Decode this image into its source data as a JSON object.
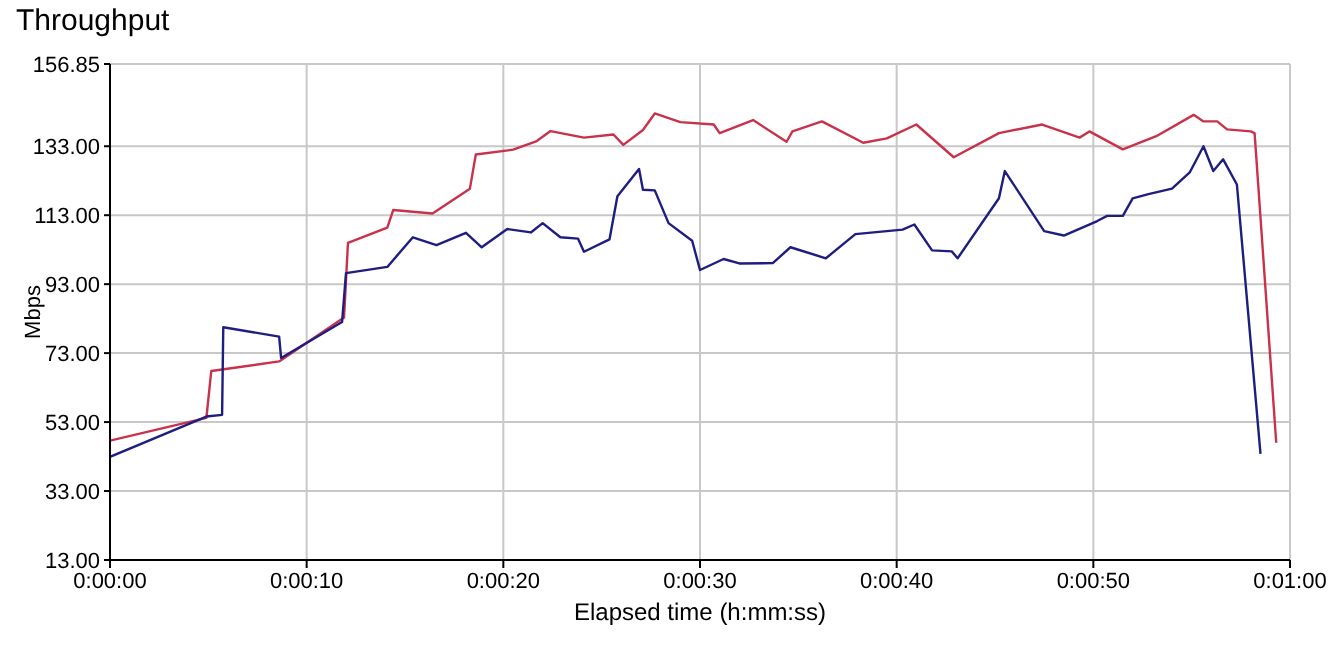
{
  "chart_data": {
    "type": "line",
    "title": "Throughput",
    "xlabel": "Elapsed time (h:mm:ss)",
    "ylabel": "Mbps",
    "xlim": [
      0,
      60
    ],
    "xticks": [
      {
        "value": 0,
        "label": "0:00:00"
      },
      {
        "value": 10,
        "label": "0:00:10"
      },
      {
        "value": 20,
        "label": "0:00:20"
      },
      {
        "value": 30,
        "label": "0:00:30"
      },
      {
        "value": 40,
        "label": "0:00:40"
      },
      {
        "value": 50,
        "label": "0:00:50"
      },
      {
        "value": 60,
        "label": "0:01:00"
      }
    ],
    "ylim": [
      13,
      156.85
    ],
    "yticks": [
      {
        "value": 13,
        "label": "13.00"
      },
      {
        "value": 33,
        "label": "33.00"
      },
      {
        "value": 53,
        "label": "53.00"
      },
      {
        "value": 73,
        "label": "73.00"
      },
      {
        "value": 93,
        "label": "93.00"
      },
      {
        "value": 113,
        "label": "113.00"
      },
      {
        "value": 133,
        "label": "133.00"
      },
      156.85
    ],
    "grid": true,
    "marker": "none",
    "line_style": "solid",
    "series": [
      {
        "color": "#c8324a",
        "x": [
          0,
          4.9,
          5.15,
          8.6,
          11.9,
          12.1,
          14.1,
          14.4,
          16.4,
          18.3,
          18.6,
          20.5,
          21.7,
          22.4,
          24.1,
          25.6,
          26.1,
          27.1,
          27.7,
          29,
          30.7,
          31,
          32.7,
          34.4,
          34.7,
          36.2,
          38.3,
          39.5,
          41,
          42.9,
          45.2,
          47.4,
          49.3,
          49.8,
          51.5,
          53.2,
          55.1,
          55.6,
          56.3,
          56.8,
          58,
          58.2,
          59.3
        ],
        "values": [
          47.6,
          54.2,
          67.8,
          70.6,
          83.3,
          105,
          109.4,
          114.5,
          113.5,
          120.7,
          130.6,
          132,
          134.5,
          137.4,
          135.5,
          136.4,
          133.4,
          137.7,
          142.5,
          140,
          139.3,
          136.8,
          140.6,
          134.3,
          137.3,
          140.2,
          134,
          135.3,
          139.3,
          129.8,
          136.8,
          139.3,
          135.5,
          137.3,
          132.1,
          135.9,
          142.1,
          140.2,
          140.2,
          137.9,
          137.3,
          136.8,
          47
        ]
      },
      {
        "color": "#1e1e80",
        "x": [
          0,
          4.9,
          5.7,
          5.76,
          8.6,
          8.7,
          11.8,
          12,
          14.1,
          15.4,
          16.6,
          18.1,
          18.9,
          20.2,
          21.4,
          22,
          22.9,
          23.8,
          24.1,
          25.4,
          25.8,
          26.9,
          27.1,
          27.7,
          28.4,
          29.6,
          30,
          31.2,
          32,
          33.7,
          34.6,
          36.4,
          37.9,
          40.3,
          40.9,
          41.8,
          42.8,
          43.1,
          45.2,
          45.5,
          47.5,
          48.5,
          50.2,
          50.7,
          51.5,
          52,
          52.8,
          54,
          54.9,
          55.6,
          56.1,
          56.6,
          57.3,
          58.5
        ],
        "values": [
          42.9,
          54.6,
          55.1,
          80.5,
          77.8,
          71.6,
          82,
          96.2,
          98,
          106.6,
          104.3,
          107.9,
          103.7,
          109,
          108,
          110.7,
          106.6,
          106.2,
          102.4,
          106,
          118.5,
          126.4,
          120.4,
          120.2,
          110.7,
          105.6,
          97.1,
          100.3,
          99,
          99.1,
          103.7,
          100.5,
          107.5,
          108.8,
          110.3,
          102.8,
          102.5,
          100.5,
          117.9,
          125.8,
          108.4,
          107.1,
          111.3,
          112.8,
          112.8,
          117.9,
          119.1,
          120.7,
          125.4,
          133,
          125.8,
          129.2,
          121.9,
          43.8
        ]
      }
    ]
  }
}
